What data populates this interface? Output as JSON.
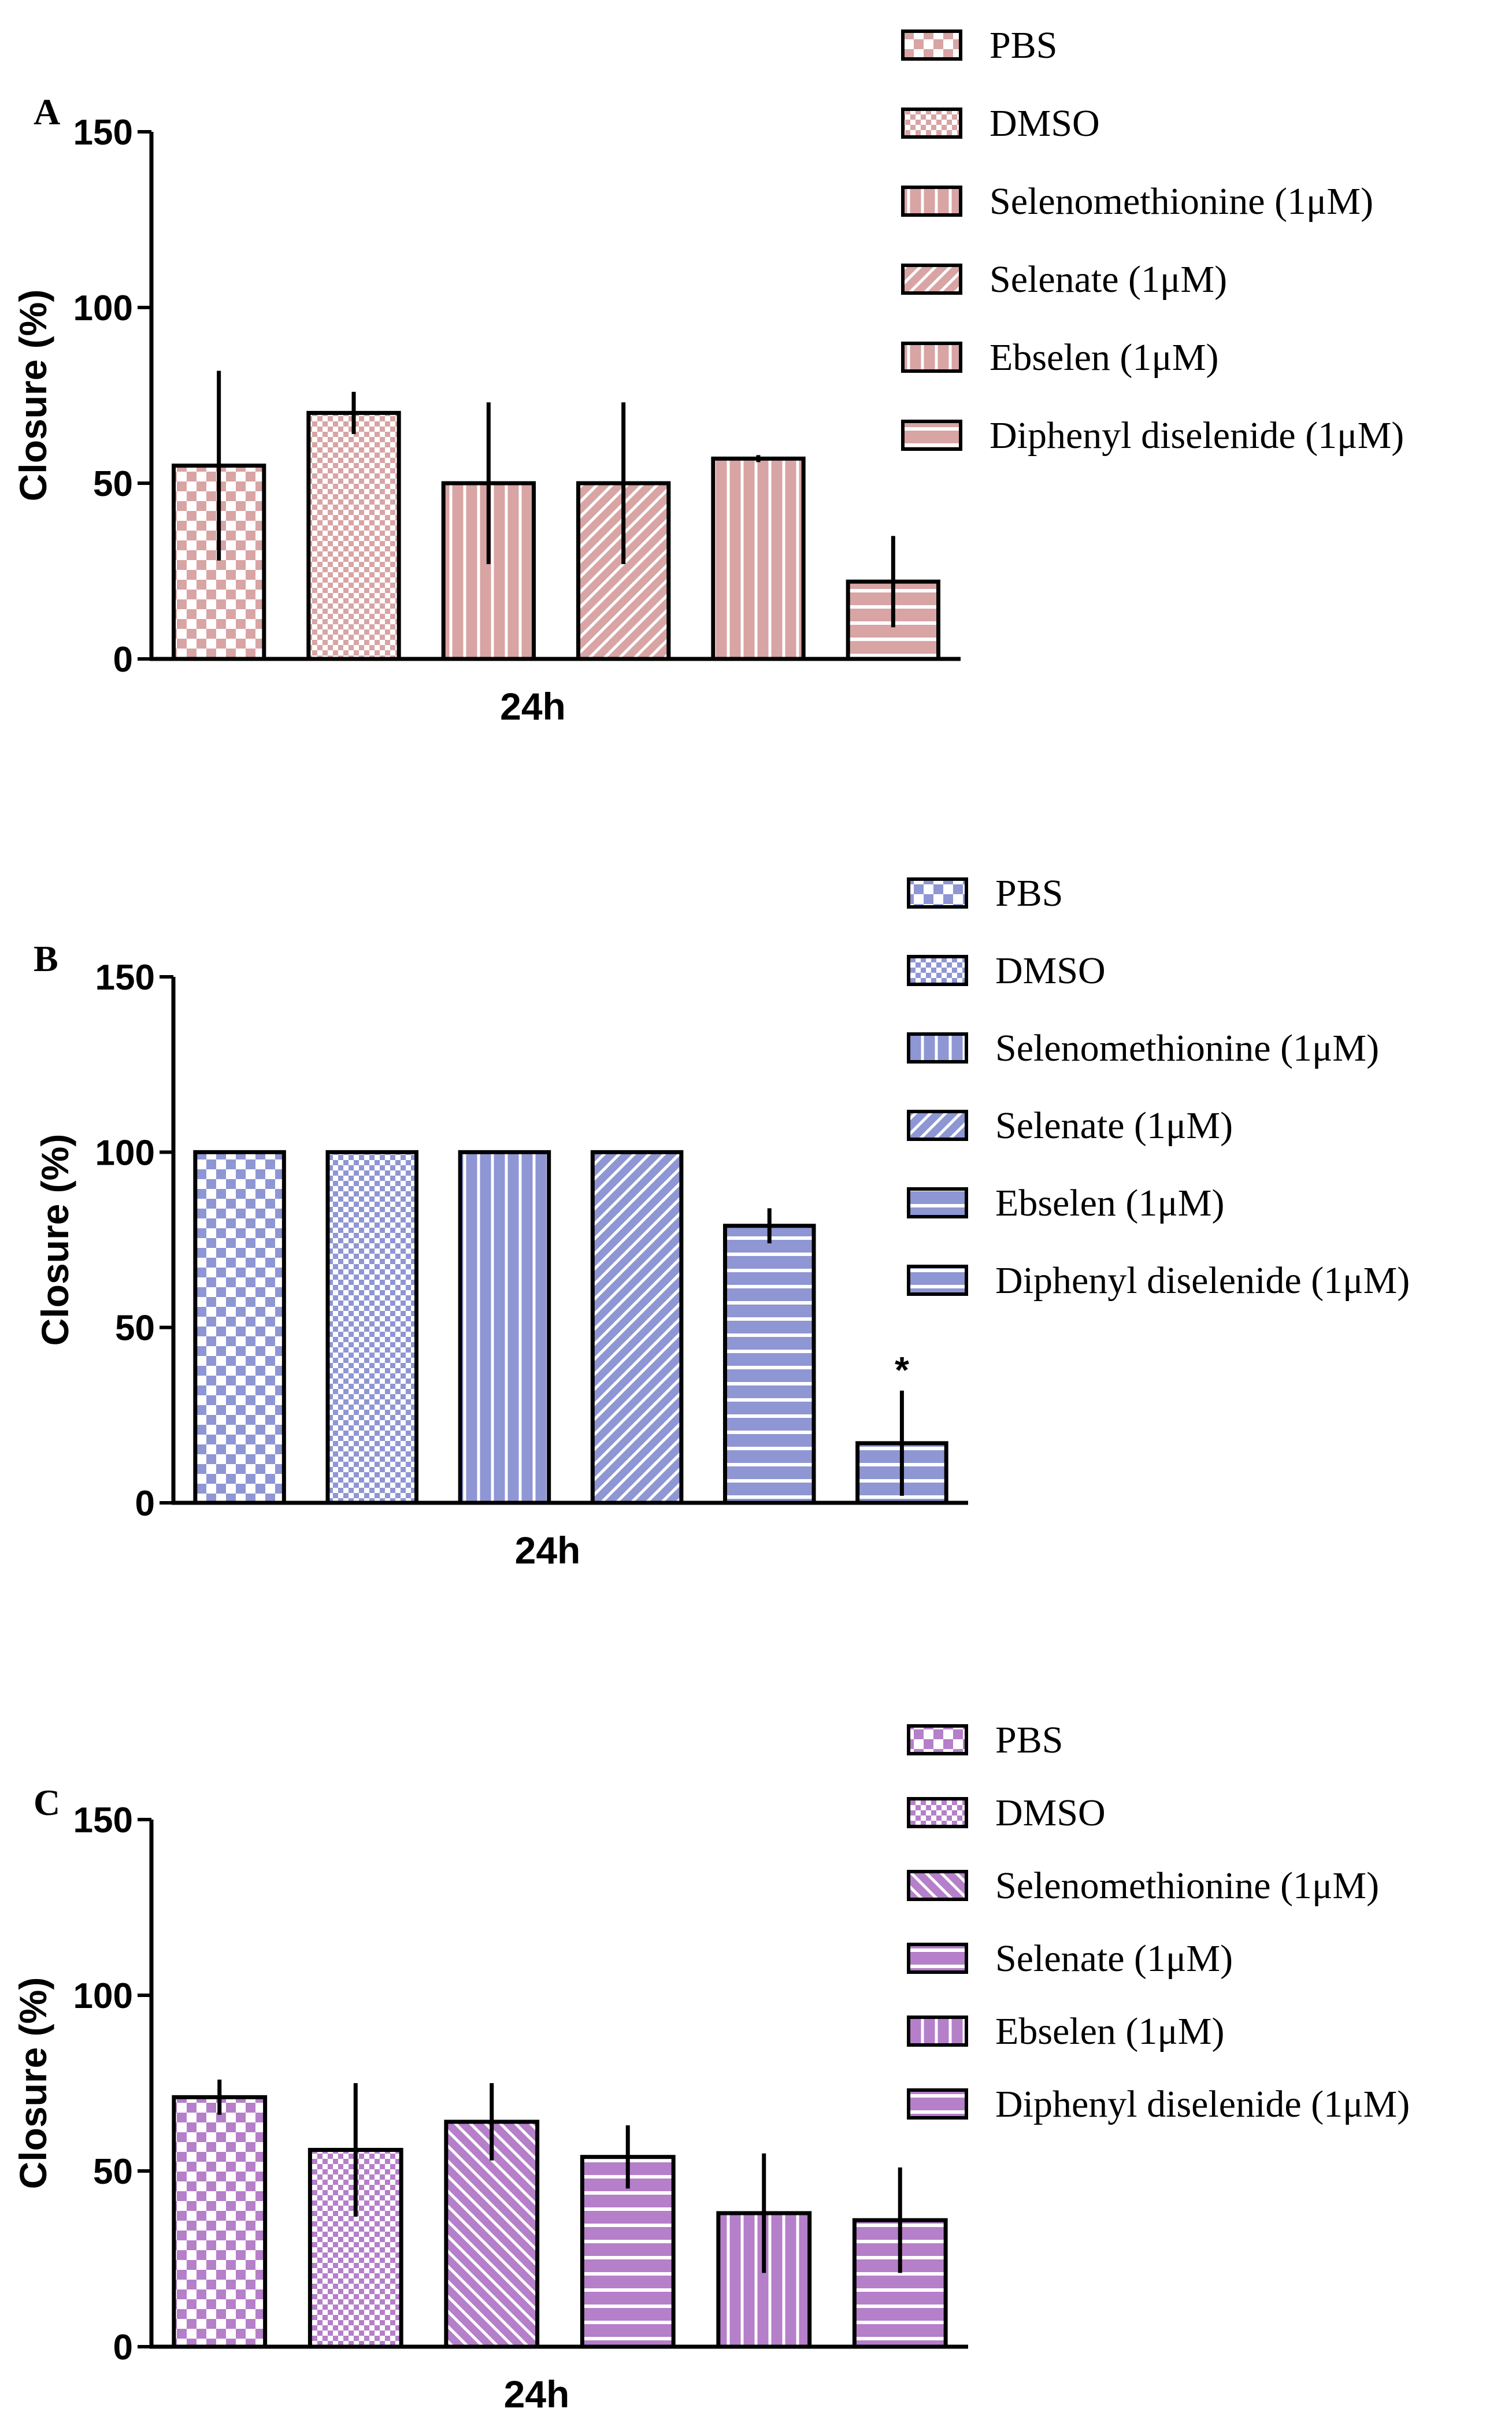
{
  "chart_data": [
    {
      "type": "bar",
      "panel_label": "A",
      "title": "",
      "xlabel": "24h",
      "ylabel": "Closure (%)",
      "ylim": [
        0,
        150
      ],
      "yticks": [
        "0",
        "50",
        "100",
        "150"
      ],
      "categories": [
        "PBS",
        "DMSO",
        "Selenomethionine (1μM)",
        "Selenate (1μM)",
        "Ebselen (1μM)",
        "Diphenyl diselenide (1μM)"
      ],
      "values": [
        55,
        70,
        50,
        50,
        57,
        22
      ],
      "errors": [
        27,
        6,
        23,
        23,
        1,
        13
      ],
      "annotations": [
        "",
        "",
        "",
        "",
        "",
        ""
      ],
      "colors": {
        "fill": "#d8a4a4",
        "stroke": "#000000"
      },
      "patterns": [
        "check-large",
        "check-small",
        "vertical",
        "diagonal-up",
        "vertical",
        "horizontal"
      ],
      "legend_position": "top-right"
    },
    {
      "type": "bar",
      "panel_label": "B",
      "title": "",
      "xlabel": "24h",
      "ylabel": "Closure (%)",
      "ylim": [
        0,
        150
      ],
      "yticks": [
        "0",
        "50",
        "100",
        "150"
      ],
      "categories": [
        "PBS",
        "DMSO",
        "Selenomethionine (1μM)",
        "Selenate (1μM)",
        "Ebselen (1μM)",
        "Diphenyl diselenide (1μM)"
      ],
      "values": [
        100,
        100,
        100,
        100,
        79,
        17
      ],
      "errors": [
        0,
        0,
        0,
        0,
        5,
        15
      ],
      "annotations": [
        "",
        "",
        "",
        "",
        "",
        "*"
      ],
      "colors": {
        "fill": "#8e96d3",
        "stroke": "#000000"
      },
      "patterns": [
        "check-large",
        "check-small",
        "vertical",
        "diagonal-up",
        "horizontal",
        "horizontal"
      ],
      "legend_position": "top-right"
    },
    {
      "type": "bar",
      "panel_label": "C",
      "title": "",
      "xlabel": "24h",
      "ylabel": "Closure (%)",
      "ylim": [
        0,
        150
      ],
      "yticks": [
        "0",
        "50",
        "100",
        "150"
      ],
      "categories": [
        "PBS",
        "DMSO",
        "Selenomethionine (1μM)",
        "Selenate (1μM)",
        "Ebselen (1μM)",
        "Diphenyl diselenide (1μM)"
      ],
      "values": [
        71,
        56,
        64,
        54,
        38,
        36
      ],
      "errors": [
        5,
        19,
        11,
        9,
        17,
        15
      ],
      "annotations": [
        "",
        "",
        "",
        "",
        "",
        ""
      ],
      "colors": {
        "fill": "#b57fc9",
        "stroke": "#000000"
      },
      "patterns": [
        "check-large",
        "check-small",
        "diagonal-down",
        "horizontal",
        "vertical",
        "horizontal"
      ],
      "legend_position": "top-right"
    }
  ]
}
